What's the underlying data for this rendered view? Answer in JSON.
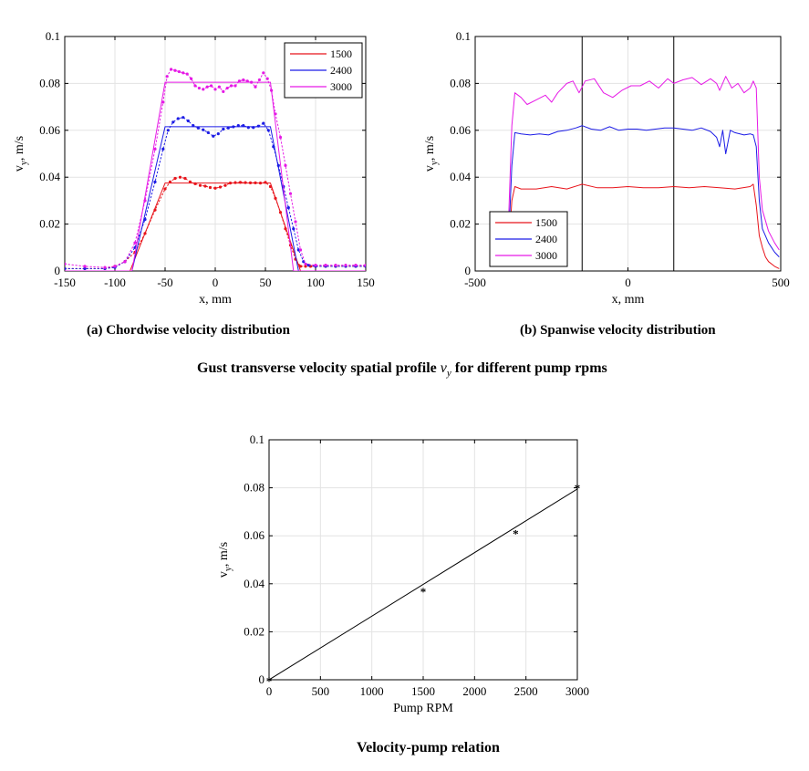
{
  "figure": {
    "caption_a": "(a) Chordwise velocity distribution",
    "caption_b": "(b) Spanwise velocity distribution",
    "suptitle_pre": "Gust transverse velocity spatial profile ",
    "suptitle_sym": "v",
    "suptitle_sub": "y",
    "suptitle_post": " for different pump rpms",
    "caption_c": "Velocity-pump relation"
  },
  "colors": {
    "1500": "#e8141b",
    "2400": "#1c1ce6",
    "3000": "#e619e6",
    "fit": "#000000"
  },
  "chart_data": [
    {
      "type": "line",
      "id": "chordwise",
      "xlabel": "x, mm",
      "ylabel_main": "v",
      "ylabel_sub": "y",
      "ylabel_unit": ", m/s",
      "xlim": [
        -150,
        150
      ],
      "ylim": [
        0,
        0.1
      ],
      "xticks": [
        -150,
        -100,
        -50,
        0,
        50,
        100,
        150
      ],
      "xtick_labels": [
        "-150",
        "-100",
        "-50",
        "0",
        "50",
        "100",
        "150"
      ],
      "yticks": [
        0,
        0.02,
        0.04,
        0.06,
        0.08,
        0.1
      ],
      "ytick_labels": [
        "0",
        "0.02",
        "0.04",
        "0.06",
        "0.08",
        "0.1"
      ],
      "grid": true,
      "legend_position": "top-right",
      "series": [
        {
          "name": "1500",
          "measured": {
            "x": [
              -150,
              -130,
              -110,
              -100,
              -90,
              -80,
              -70,
              -60,
              -50,
              -45,
              -40,
              -35,
              -30,
              -25,
              -20,
              -15,
              -10,
              -5,
              0,
              5,
              10,
              15,
              20,
              25,
              30,
              35,
              40,
              45,
              50,
              55,
              60,
              65,
              70,
              75,
              80,
              85,
              90,
              95,
              100,
              110,
              120,
              130,
              140,
              150
            ],
            "y": [
              0.001,
              0.001,
              0.001,
              0.002,
              0.004,
              0.008,
              0.016,
              0.026,
              0.035,
              0.038,
              0.0395,
              0.04,
              0.0395,
              0.038,
              0.0372,
              0.0365,
              0.0362,
              0.0356,
              0.0353,
              0.0358,
              0.0365,
              0.0375,
              0.0377,
              0.0378,
              0.0377,
              0.0376,
              0.0376,
              0.0375,
              0.0378,
              0.036,
              0.031,
              0.025,
              0.018,
              0.011,
              0.005,
              0.002,
              0.002,
              0.002,
              0.002,
              0.002,
              0.002,
              0.002,
              0.002,
              0.002
            ]
          },
          "fit": {
            "x": [
              -150,
              -85,
              -50,
              55,
              85,
              150
            ],
            "y": [
              0,
              0,
              0.0375,
              0.0375,
              0,
              0
            ]
          }
        },
        {
          "name": "2400",
          "measured": {
            "x": [
              -150,
              -130,
              -110,
              -100,
              -90,
              -80,
              -70,
              -60,
              -52,
              -47,
              -42,
              -37,
              -32,
              -27,
              -22,
              -17,
              -12,
              -7,
              -2,
              3,
              8,
              13,
              18,
              23,
              28,
              33,
              38,
              43,
              48,
              53,
              58,
              63,
              68,
              73,
              78,
              83,
              88,
              93,
              100,
              110,
              120,
              130,
              140,
              150
            ],
            "y": [
              0.001,
              0.001,
              0.001,
              0.0015,
              0.004,
              0.01,
              0.022,
              0.038,
              0.052,
              0.06,
              0.0635,
              0.065,
              0.0655,
              0.064,
              0.062,
              0.061,
              0.0602,
              0.059,
              0.0575,
              0.0585,
              0.0605,
              0.061,
              0.0615,
              0.062,
              0.062,
              0.0612,
              0.0612,
              0.0618,
              0.063,
              0.06,
              0.053,
              0.045,
              0.036,
              0.027,
              0.018,
              0.009,
              0.004,
              0.0025,
              0.002,
              0.002,
              0.002,
              0.002,
              0.002,
              0.002
            ]
          },
          "fit": {
            "x": [
              -150,
              -83,
              -50,
              55,
              83,
              150
            ],
            "y": [
              0,
              0,
              0.0615,
              0.0615,
              0,
              0
            ]
          }
        },
        {
          "name": "3000",
          "measured": {
            "x": [
              -150,
              -130,
              -110,
              -100,
              -90,
              -80,
              -70,
              -60,
              -52,
              -48,
              -44,
              -40,
              -36,
              -32,
              -28,
              -24,
              -20,
              -16,
              -12,
              -8,
              -4,
              0,
              4,
              8,
              12,
              16,
              20,
              24,
              28,
              32,
              36,
              40,
              44,
              48,
              52,
              56,
              60,
              65,
              70,
              75,
              80,
              85,
              90,
              100,
              110,
              120,
              130,
              140,
              150
            ],
            "y": [
              0.003,
              0.002,
              0.0015,
              0.002,
              0.004,
              0.012,
              0.03,
              0.052,
              0.072,
              0.083,
              0.086,
              0.0855,
              0.085,
              0.0845,
              0.084,
              0.082,
              0.079,
              0.078,
              0.0775,
              0.0785,
              0.079,
              0.0775,
              0.0785,
              0.0765,
              0.078,
              0.079,
              0.079,
              0.081,
              0.0815,
              0.081,
              0.0805,
              0.0785,
              0.0815,
              0.0845,
              0.082,
              0.077,
              0.067,
              0.057,
              0.045,
              0.033,
              0.021,
              0.009,
              0.003,
              0.0025,
              0.0025,
              0.0025,
              0.0025,
              0.0025,
              0.0025
            ]
          },
          "fit": {
            "x": [
              -150,
              -83,
              -50,
              55,
              78,
              150
            ],
            "y": [
              0,
              0,
              0.0805,
              0.0805,
              0,
              0
            ]
          }
        }
      ]
    },
    {
      "type": "line",
      "id": "spanwise",
      "xlabel": "x, mm",
      "ylabel_main": "v",
      "ylabel_sub": "y",
      "ylabel_unit": ", m/s",
      "xlim": [
        -500,
        500
      ],
      "ylim": [
        0,
        0.1
      ],
      "xticks": [
        -500,
        0,
        500
      ],
      "xtick_labels": [
        "-500",
        "0",
        "500"
      ],
      "yticks": [
        0,
        0.02,
        0.04,
        0.06,
        0.08,
        0.1
      ],
      "ytick_labels": [
        "0",
        "0.02",
        "0.04",
        "0.06",
        "0.08",
        "0.1"
      ],
      "vlines": [
        -150,
        150
      ],
      "grid": true,
      "legend_position": "bottom-left",
      "series": [
        {
          "name": "1500",
          "x": [
            -400,
            -390,
            -380,
            -370,
            -350,
            -300,
            -250,
            -200,
            -150,
            -100,
            -50,
            0,
            50,
            100,
            150,
            200,
            250,
            300,
            350,
            400,
            410,
            420,
            430,
            440,
            450,
            460,
            480,
            495
          ],
          "y": [
            0.003,
            0.01,
            0.03,
            0.036,
            0.035,
            0.035,
            0.036,
            0.035,
            0.037,
            0.0355,
            0.0355,
            0.036,
            0.0355,
            0.0355,
            0.036,
            0.0355,
            0.036,
            0.0355,
            0.035,
            0.036,
            0.037,
            0.028,
            0.015,
            0.01,
            0.006,
            0.004,
            0.002,
            0.001
          ]
        },
        {
          "name": "2400",
          "x": [
            -400,
            -390,
            -380,
            -370,
            -350,
            -320,
            -290,
            -260,
            -230,
            -200,
            -170,
            -150,
            -120,
            -90,
            -60,
            -30,
            0,
            30,
            60,
            90,
            120,
            150,
            180,
            210,
            240,
            270,
            290,
            300,
            310,
            320,
            335,
            350,
            380,
            400,
            410,
            420,
            430,
            440,
            460,
            480,
            495
          ],
          "y": [
            0.003,
            0.015,
            0.045,
            0.059,
            0.0585,
            0.058,
            0.0585,
            0.058,
            0.0595,
            0.06,
            0.061,
            0.062,
            0.0605,
            0.06,
            0.0615,
            0.06,
            0.0605,
            0.0605,
            0.06,
            0.0605,
            0.061,
            0.061,
            0.0605,
            0.06,
            0.061,
            0.0595,
            0.057,
            0.053,
            0.06,
            0.05,
            0.06,
            0.059,
            0.058,
            0.0585,
            0.058,
            0.053,
            0.03,
            0.018,
            0.012,
            0.008,
            0.006
          ]
        },
        {
          "name": "3000",
          "x": [
            -400,
            -390,
            -380,
            -370,
            -350,
            -330,
            -300,
            -270,
            -250,
            -230,
            -200,
            -180,
            -160,
            -140,
            -110,
            -80,
            -50,
            -20,
            10,
            40,
            70,
            100,
            130,
            150,
            180,
            210,
            240,
            270,
            290,
            300,
            320,
            340,
            360,
            380,
            400,
            410,
            420,
            430,
            440,
            460,
            480,
            495
          ],
          "y": [
            0.003,
            0.025,
            0.062,
            0.076,
            0.074,
            0.071,
            0.073,
            0.075,
            0.072,
            0.076,
            0.08,
            0.081,
            0.076,
            0.081,
            0.082,
            0.076,
            0.074,
            0.077,
            0.079,
            0.079,
            0.081,
            0.078,
            0.082,
            0.08,
            0.0815,
            0.0825,
            0.0795,
            0.082,
            0.08,
            0.077,
            0.083,
            0.078,
            0.08,
            0.076,
            0.078,
            0.081,
            0.078,
            0.04,
            0.026,
            0.017,
            0.012,
            0.009
          ]
        }
      ]
    },
    {
      "type": "scatter",
      "id": "velocity_pump",
      "xlabel": "Pump RPM",
      "ylabel_main": "v",
      "ylabel_sub": "y",
      "ylabel_unit": ", m/s",
      "xlim": [
        0,
        3000
      ],
      "ylim": [
        0,
        0.1
      ],
      "xticks": [
        0,
        500,
        1000,
        1500,
        2000,
        2500,
        3000
      ],
      "xtick_labels": [
        "0",
        "500",
        "1000",
        "1500",
        "2000",
        "2500",
        "3000"
      ],
      "yticks": [
        0,
        0.02,
        0.04,
        0.06,
        0.08,
        0.1
      ],
      "ytick_labels": [
        "0",
        "0.02",
        "0.04",
        "0.06",
        "0.08",
        "0.1"
      ],
      "grid": true,
      "points": {
        "x": [
          0,
          1500,
          2400,
          3000
        ],
        "y": [
          0,
          0.0372,
          0.0615,
          0.0805
        ]
      },
      "fit_line": {
        "x": [
          0,
          3000
        ],
        "y": [
          0,
          0.0795
        ]
      }
    }
  ]
}
